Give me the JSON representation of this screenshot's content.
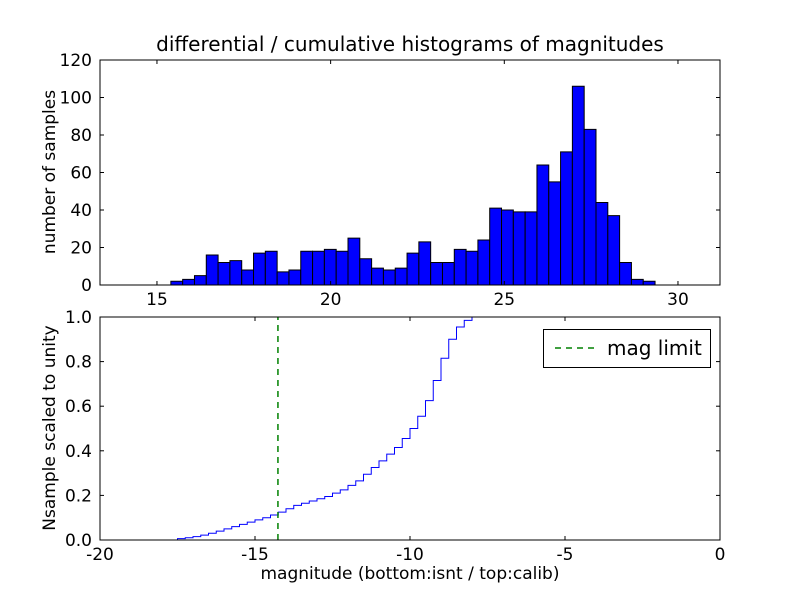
{
  "figure": {
    "background": "#ffffff",
    "title": "differential / cumulative histograms of magnitudes"
  },
  "chart_data": [
    {
      "id": "differential-histogram",
      "type": "bar",
      "title": "differential / cumulative histograms of magnitudes",
      "ylabel": "number of samples",
      "xlabel": "",
      "xlim": [
        13.36,
        31.21
      ],
      "ylim": [
        0,
        120
      ],
      "xticks": [
        15,
        20,
        25,
        30
      ],
      "xtick_labels": [
        "15",
        "20",
        "25",
        "30"
      ],
      "yticks": [
        0,
        20,
        40,
        60,
        80,
        100,
        120
      ],
      "ytick_labels": [
        "0",
        "20",
        "40",
        "60",
        "80",
        "100",
        "120"
      ],
      "grid": false,
      "legend": null,
      "bar_color": "#0000ff",
      "bar_edge_color": "#000000",
      "bin_start": 15.4,
      "bin_width": 0.34,
      "counts": [
        2,
        3,
        5,
        16,
        12,
        13,
        8,
        17,
        18,
        7,
        8,
        18,
        18,
        19,
        18,
        25,
        14,
        9,
        8,
        9,
        17,
        23,
        12,
        12,
        19,
        18,
        24,
        41,
        40,
        39,
        39,
        64,
        55,
        71,
        106,
        83,
        44,
        37,
        12,
        3,
        2
      ]
    },
    {
      "id": "cumulative-histogram",
      "type": "line",
      "title": "",
      "ylabel": "Nsample scaled to unity",
      "xlabel": "magnitude (bottom:isnt / top:calib)",
      "xlim": [
        -20,
        0
      ],
      "ylim": [
        0,
        1
      ],
      "xticks": [
        -20,
        -15,
        -10,
        -5,
        0
      ],
      "xtick_labels": [
        "-20",
        "-15",
        "-10",
        "-5",
        "0"
      ],
      "yticks": [
        0,
        0.2,
        0.4,
        0.6,
        0.8,
        1
      ],
      "ytick_labels": [
        "0.0",
        "0.2",
        "0.4",
        "0.6",
        "0.8",
        "1.0"
      ],
      "grid": false,
      "line_color": "#0000ff",
      "step_edges": [
        -17.5,
        -17.25,
        -17.0,
        -16.75,
        -16.5,
        -16.25,
        -16.0,
        -15.75,
        -15.5,
        -15.25,
        -15.0,
        -14.75,
        -14.5,
        -14.25,
        -14.0,
        -13.75,
        -13.5,
        -13.25,
        -13.0,
        -12.75,
        -12.5,
        -12.25,
        -12.0,
        -11.75,
        -11.5,
        -11.25,
        -11.0,
        -10.75,
        -10.5,
        -10.25,
        -10.0,
        -9.75,
        -9.5,
        -9.25,
        -9.0,
        -8.75,
        -8.5,
        -8.25,
        -8.0,
        -7.75
      ],
      "step_cumulative": [
        0.006,
        0.01,
        0.015,
        0.022,
        0.03,
        0.04,
        0.05,
        0.06,
        0.07,
        0.08,
        0.09,
        0.1,
        0.112,
        0.125,
        0.14,
        0.155,
        0.165,
        0.175,
        0.185,
        0.195,
        0.21,
        0.225,
        0.245,
        0.265,
        0.295,
        0.325,
        0.355,
        0.385,
        0.415,
        0.455,
        0.5,
        0.555,
        0.625,
        0.715,
        0.815,
        0.9,
        0.955,
        0.985,
        1.0
      ],
      "mag_limit_line": {
        "x": -14.26,
        "color": "#008000",
        "style": "dashed"
      },
      "legend": {
        "label": "mag limit",
        "position": "upper right",
        "line_color": "#008000",
        "line_style": "dashed"
      }
    }
  ]
}
